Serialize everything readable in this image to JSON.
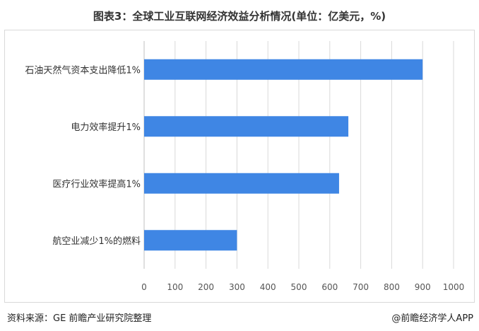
{
  "title": "图表3：全球工业互联网经济效益分析情况(单位：亿美元，%)",
  "footer": {
    "source": "资料来源：GE 前瞻产业研究院整理",
    "brand": "@前瞻经济学人APP"
  },
  "chart_data": {
    "type": "bar",
    "orientation": "horizontal",
    "title": "图表3：全球工业互联网经济效益分析情况(单位：亿美元，%)",
    "categories": [
      "石油天然气资本支出降低1%",
      "电力效率提升1%",
      "医疗行业效率提高1%",
      "航空业减少1%的燃料"
    ],
    "values": [
      900,
      660,
      630,
      300
    ],
    "xlim": [
      0,
      1000
    ],
    "xticks": [
      0,
      100,
      200,
      300,
      400,
      500,
      600,
      700,
      800,
      900,
      1000
    ],
    "grid": true,
    "bar_color": "#3f86e4"
  }
}
